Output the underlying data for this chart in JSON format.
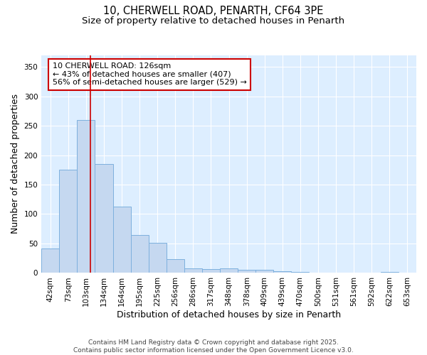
{
  "title_line1": "10, CHERWELL ROAD, PENARTH, CF64 3PE",
  "title_line2": "Size of property relative to detached houses in Penarth",
  "xlabel": "Distribution of detached houses by size in Penarth",
  "ylabel": "Number of detached properties",
  "bar_labels": [
    "42sqm",
    "73sqm",
    "103sqm",
    "134sqm",
    "164sqm",
    "195sqm",
    "225sqm",
    "256sqm",
    "286sqm",
    "317sqm",
    "348sqm",
    "378sqm",
    "409sqm",
    "439sqm",
    "470sqm",
    "500sqm",
    "531sqm",
    "561sqm",
    "592sqm",
    "622sqm",
    "653sqm"
  ],
  "bar_values": [
    42,
    175,
    260,
    185,
    113,
    65,
    51,
    24,
    8,
    7,
    8,
    5,
    5,
    3,
    2,
    0,
    1,
    0,
    0,
    2,
    0
  ],
  "bar_color": "#c5d8f0",
  "bar_edge_color": "#7db0de",
  "bg_color": "#ddeeff",
  "grid_color": "#ffffff",
  "property_line_color": "#cc0000",
  "annotation_text": "10 CHERWELL ROAD: 126sqm\n← 43% of detached houses are smaller (407)\n56% of semi-detached houses are larger (529) →",
  "annotation_box_color": "#cc0000",
  "ylim": [
    0,
    370
  ],
  "yticks": [
    0,
    50,
    100,
    150,
    200,
    250,
    300,
    350
  ],
  "footnote": "Contains HM Land Registry data © Crown copyright and database right 2025.\nContains public sector information licensed under the Open Government Licence v3.0.",
  "title_fontsize": 10.5,
  "subtitle_fontsize": 9.5,
  "tick_fontsize": 7.5,
  "xlabel_fontsize": 9,
  "ylabel_fontsize": 9,
  "annotation_fontsize": 8,
  "footnote_fontsize": 6.5
}
